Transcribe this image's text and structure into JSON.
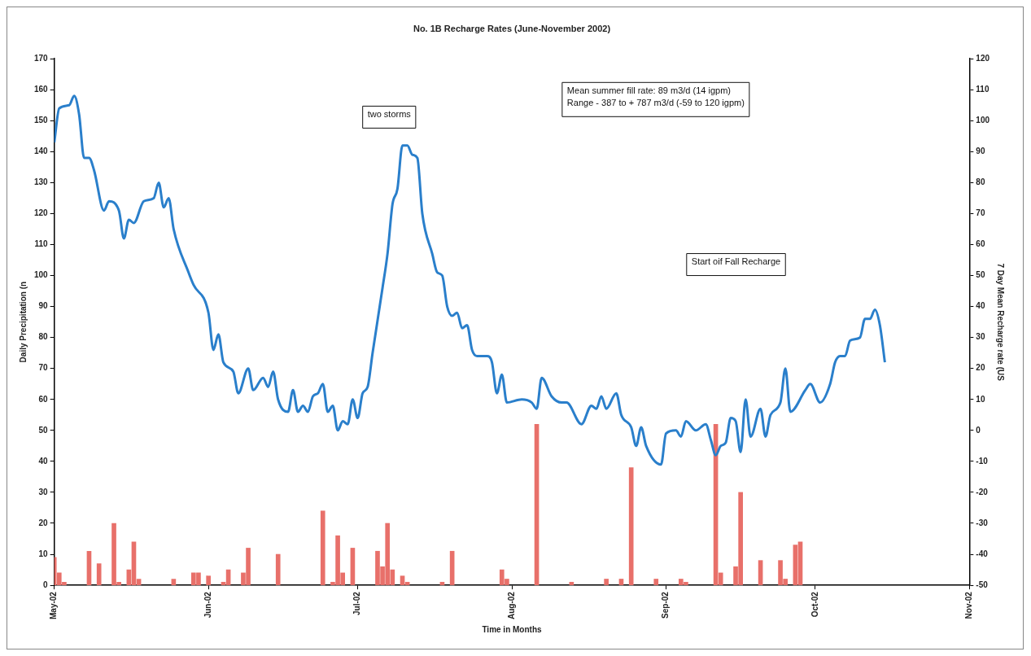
{
  "chart_data": {
    "type": "bar",
    "title": "No. 1B Recharge Rates (June-November 2002)",
    "xlabel": "Time in Months",
    "ylabel": "Daily Precipitation (n",
    "y2label": "7 Day Mean Recharge rate (US",
    "annotations": [
      "two storms",
      "Mean summer fill rate: 89 m3/d (14 igpm)",
      "Range - 387 to + 787 m3/d (-59 to 120 igpm)",
      "Start oif Fall Recharge"
    ],
    "xlim": [
      "2002-05-01",
      "2002-11-01"
    ],
    "xticks": [
      {
        "value": "2002-05-01",
        "label": "May-02"
      },
      {
        "value": "2002-06-01",
        "label": "Jun-02"
      },
      {
        "value": "2002-07-01",
        "label": "Jul-02"
      },
      {
        "value": "2002-08-01",
        "label": "Aug-02"
      },
      {
        "value": "2002-09-01",
        "label": "Sep-02"
      },
      {
        "value": "2002-10-01",
        "label": "Oct-02"
      },
      {
        "value": "2002-11-01",
        "label": "Nov-02"
      }
    ],
    "ylim": [
      0,
      170
    ],
    "yticks": [
      0,
      10,
      20,
      30,
      40,
      50,
      60,
      70,
      80,
      90,
      100,
      110,
      120,
      130,
      140,
      150,
      160,
      170
    ],
    "y2lim": [
      -50,
      120
    ],
    "y2ticks": [
      -50,
      -40,
      -30,
      -20,
      -10,
      0,
      10,
      20,
      30,
      40,
      50,
      60,
      70,
      80,
      90,
      100,
      110,
      120
    ],
    "grid": false,
    "legend": false,
    "series": [
      {
        "color": "#e8706a",
        "x": [
          "2002-05-01",
          "2002-05-02",
          "2002-05-03",
          "2002-05-08",
          "2002-05-10",
          "2002-05-13",
          "2002-05-14",
          "2002-05-16",
          "2002-05-17",
          "2002-05-18",
          "2002-05-25",
          "2002-05-29",
          "2002-05-30",
          "2002-06-01",
          "2002-06-04",
          "2002-06-05",
          "2002-06-08",
          "2002-06-09",
          "2002-06-15",
          "2002-06-24",
          "2002-06-26",
          "2002-06-27",
          "2002-06-28",
          "2002-06-30",
          "2002-07-05",
          "2002-07-06",
          "2002-07-07",
          "2002-07-08",
          "2002-07-10",
          "2002-07-11",
          "2002-07-18",
          "2002-07-20",
          "2002-07-30",
          "2002-07-31",
          "2002-08-06",
          "2002-08-13",
          "2002-08-20",
          "2002-08-23",
          "2002-08-25",
          "2002-08-30",
          "2002-09-04",
          "2002-09-05",
          "2002-09-11",
          "2002-09-12",
          "2002-09-15",
          "2002-09-16",
          "2002-09-20",
          "2002-09-24",
          "2002-09-25",
          "2002-09-27",
          "2002-09-28"
        ],
        "values": [
          9,
          4,
          1,
          11,
          7,
          20,
          1,
          5,
          14,
          2,
          2,
          4,
          4,
          3,
          1,
          5,
          4,
          12,
          10,
          24,
          1,
          16,
          4,
          12,
          11,
          6,
          20,
          5,
          3,
          1,
          1,
          11,
          5,
          2,
          52,
          1,
          2,
          2,
          38,
          2,
          2,
          1,
          52,
          4,
          6,
          30,
          8,
          8,
          2,
          13,
          14
        ]
      },
      {
        "type": "line",
        "axis": "y2",
        "color": "#2a7fcb",
        "line_style": "solid",
        "marker": "none",
        "x": [
          "2002-05-01",
          "2002-05-02",
          "2002-05-04",
          "2002-05-05",
          "2002-05-06",
          "2002-05-07",
          "2002-05-08",
          "2002-05-09",
          "2002-05-11",
          "2002-05-12",
          "2002-05-14",
          "2002-05-15",
          "2002-05-16",
          "2002-05-17",
          "2002-05-19",
          "2002-05-21",
          "2002-05-22",
          "2002-05-23",
          "2002-05-24",
          "2002-05-25",
          "2002-05-28",
          "2002-05-29",
          "2002-06-01",
          "2002-06-02",
          "2002-06-03",
          "2002-06-04",
          "2002-06-06",
          "2002-06-07",
          "2002-06-09",
          "2002-06-10",
          "2002-06-12",
          "2002-06-13",
          "2002-06-14",
          "2002-06-15",
          "2002-06-17",
          "2002-06-18",
          "2002-06-19",
          "2002-06-20",
          "2002-06-21",
          "2002-06-22",
          "2002-06-23",
          "2002-06-24",
          "2002-06-25",
          "2002-06-26",
          "2002-06-27",
          "2002-06-28",
          "2002-06-29",
          "2002-06-30",
          "2002-07-01",
          "2002-07-02",
          "2002-07-03",
          "2002-07-04",
          "2002-07-06",
          "2002-07-07",
          "2002-07-08",
          "2002-07-09",
          "2002-07-10",
          "2002-07-11",
          "2002-07-12",
          "2002-07-13",
          "2002-07-14",
          "2002-07-16",
          "2002-07-17",
          "2002-07-18",
          "2002-07-19",
          "2002-07-20",
          "2002-07-21",
          "2002-07-22",
          "2002-07-23",
          "2002-07-24",
          "2002-07-25",
          "2002-07-27",
          "2002-07-28",
          "2002-07-29",
          "2002-07-30",
          "2002-07-31",
          "2002-08-03",
          "2002-08-05",
          "2002-08-06",
          "2002-08-07",
          "2002-08-09",
          "2002-08-11",
          "2002-08-12",
          "2002-08-15",
          "2002-08-17",
          "2002-08-18",
          "2002-08-19",
          "2002-08-20",
          "2002-08-22",
          "2002-08-23",
          "2002-08-25",
          "2002-08-26",
          "2002-08-27",
          "2002-08-28",
          "2002-08-31",
          "2002-09-01",
          "2002-09-03",
          "2002-09-04",
          "2002-09-05",
          "2002-09-07",
          "2002-09-09",
          "2002-09-10",
          "2002-09-11",
          "2002-09-12",
          "2002-09-13",
          "2002-09-14",
          "2002-09-15",
          "2002-09-16",
          "2002-09-17",
          "2002-09-18",
          "2002-09-20",
          "2002-09-21",
          "2002-09-22",
          "2002-09-24",
          "2002-09-25",
          "2002-09-26",
          "2002-09-29",
          "2002-09-30",
          "2002-10-02",
          "2002-10-04",
          "2002-10-05",
          "2002-10-06",
          "2002-10-07",
          "2002-10-08",
          "2002-10-10",
          "2002-10-11",
          "2002-10-12",
          "2002-10-13",
          "2002-10-14",
          "2002-10-15"
        ],
        "values": [
          93,
          104,
          105,
          108,
          102,
          88,
          88,
          84,
          71,
          74,
          71,
          62,
          68,
          67,
          74,
          75,
          80,
          72,
          75,
          65,
          51,
          47,
          38,
          26,
          31,
          22,
          19,
          12,
          20,
          13,
          17,
          14,
          19,
          10,
          6,
          13,
          6,
          8,
          6,
          11,
          12,
          15,
          6,
          8,
          0,
          3,
          2,
          10,
          4,
          12,
          14,
          25,
          46,
          57,
          73,
          78,
          92,
          92,
          89,
          88,
          70,
          57,
          51,
          50,
          40,
          37,
          38,
          33,
          34,
          26,
          24,
          24,
          22,
          12,
          18,
          9,
          10,
          9,
          7,
          17,
          11,
          9,
          9,
          2,
          8,
          7,
          11,
          7,
          12,
          5,
          1,
          -5,
          1,
          -5,
          -11,
          -1,
          0,
          -2,
          3,
          0,
          2,
          -3,
          -8,
          -5,
          -4,
          4,
          3,
          -7,
          10,
          -2,
          7,
          -2,
          5,
          9,
          20,
          6,
          13,
          15,
          9,
          15,
          22,
          24,
          24,
          29,
          30,
          36,
          36,
          39,
          34,
          22
        ]
      }
    ]
  }
}
